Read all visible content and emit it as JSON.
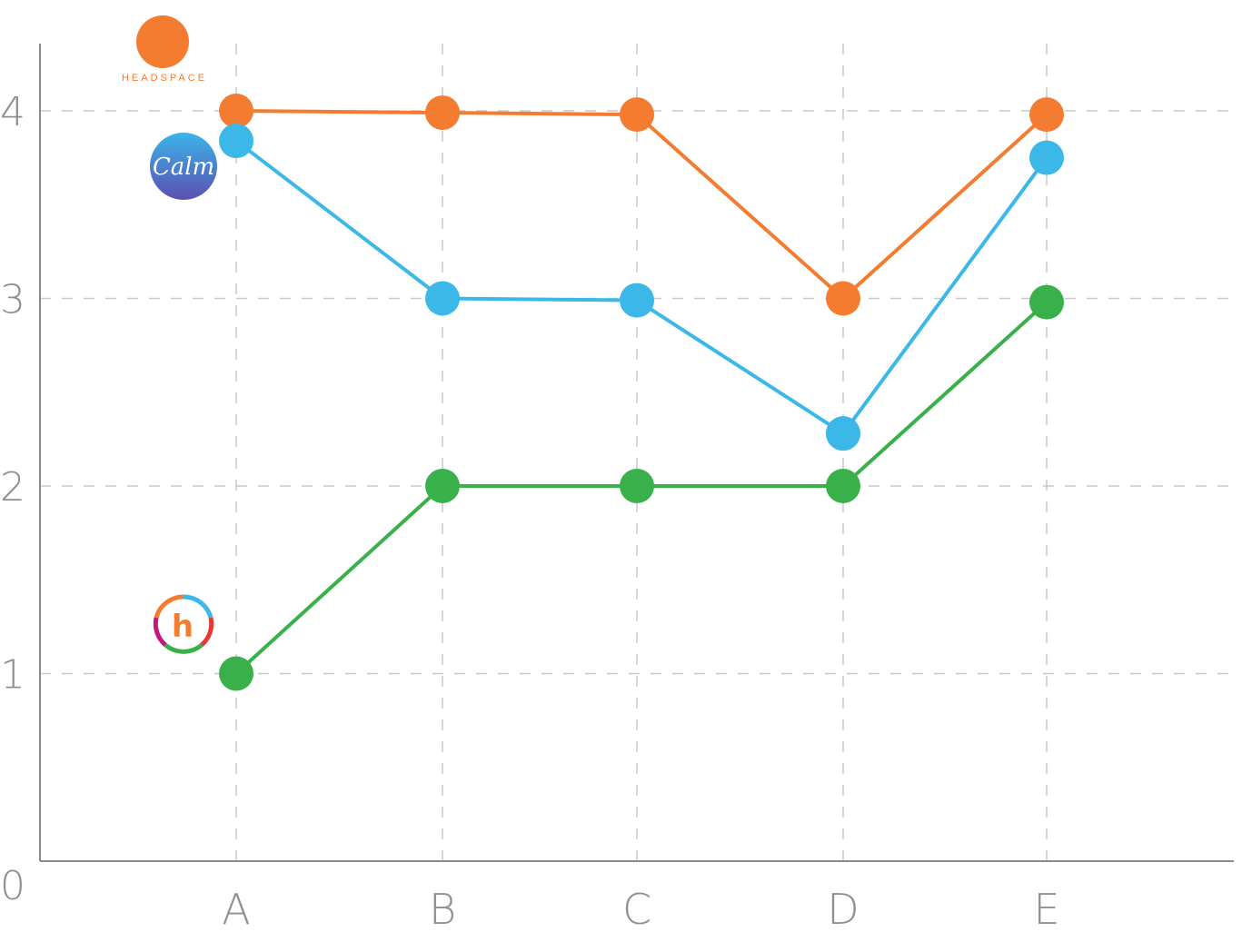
{
  "chart_data": {
    "type": "line",
    "categories": [
      "A",
      "B",
      "C",
      "D",
      "E"
    ],
    "yticks": [
      "0",
      "1",
      "2",
      "3",
      "4"
    ],
    "ylim": [
      0,
      4.36
    ],
    "grid": true,
    "legend": "logos on left",
    "series": [
      {
        "name": "HEADSPACE",
        "color": "#f47c30",
        "values": [
          4.0,
          3.99,
          3.98,
          3.0,
          3.98
        ]
      },
      {
        "name": "Calm",
        "color": "#3bb8e8",
        "values": [
          3.84,
          3.0,
          2.99,
          2.28,
          3.75
        ]
      },
      {
        "name": "h",
        "color": "#39b04a",
        "values": [
          1.0,
          2.0,
          2.0,
          2.0,
          2.98
        ]
      }
    ]
  },
  "logos": {
    "headspace": {
      "text": "HEADSPACE",
      "icon": "headspace-logo"
    },
    "calm": {
      "text": "Calm",
      "icon": "calm-logo"
    },
    "h": {
      "text": "h",
      "icon": "happify-logo"
    }
  }
}
